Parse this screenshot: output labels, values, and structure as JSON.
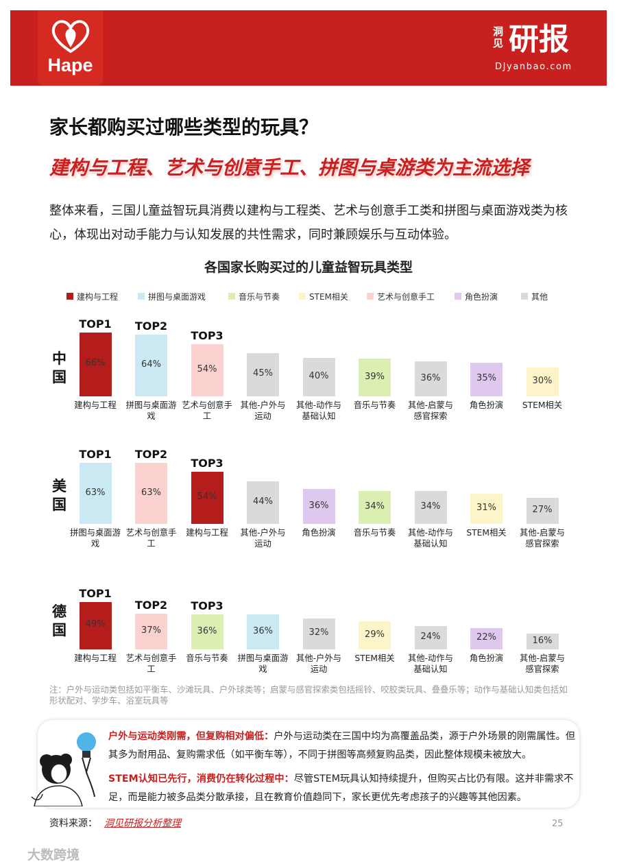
{
  "header": {
    "logo": "Hape",
    "brand_small": "洞见",
    "brand_large": "研报",
    "site": "DJyanbao.com"
  },
  "title": "家长都购买过哪些类型的玩具？",
  "subtitle": "建构与工程、艺术与创意手工、拼图与桌游类为主流选择",
  "intro": "整体来看，三国儿童益智玩具消费以建构与工程类、艺术与创意手工类和拼图与桌面游戏类为核心，体现出对动手能力与认知发展的共性需求，同时兼顾娱乐与互动体验。",
  "chart_title": "各国家长购买过的儿童益智玩具类型",
  "legend": [
    {
      "name": "建构与工程",
      "color": "#b51d1d"
    },
    {
      "name": "拼图与桌面游戏",
      "color": "#cbe9f3"
    },
    {
      "name": "音乐与节奏",
      "color": "#dcefb3"
    },
    {
      "name": "STEM相关",
      "color": "#fdf5c9"
    },
    {
      "name": "艺术与创意手工",
      "color": "#fbd2d0"
    },
    {
      "name": "角色扮演",
      "color": "#dec8ee"
    },
    {
      "name": "其他",
      "color": "#dadada"
    }
  ],
  "chart_data": [
    {
      "type": "bar",
      "title": "中国",
      "categories": [
        "建构与工程",
        "拼图与桌面游戏",
        "艺术与创意手工",
        "其他-户外与运动",
        "其他-动作与基础认知",
        "音乐与节奏",
        "其他-启蒙与感官探索",
        "角色扮演",
        "STEM相关"
      ],
      "values": [
        66,
        64,
        54,
        45,
        40,
        39,
        36,
        35,
        30
      ],
      "value_labels": [
        "66%",
        "64%",
        "54%",
        "45%",
        "40%",
        "39%",
        "36%",
        "35%",
        "30%"
      ],
      "colors": [
        "#b51d1d",
        "#cbe9f3",
        "#fbd2d0",
        "#dadada",
        "#dadada",
        "#dcefb3",
        "#dadada",
        "#dec8ee",
        "#fdf5c9"
      ],
      "annotations": [
        "TOP1",
        "TOP2",
        "TOP3"
      ]
    },
    {
      "type": "bar",
      "title": "美国",
      "categories": [
        "拼图与桌面游戏",
        "艺术与创意手工",
        "建构与工程",
        "其他-户外与运动",
        "角色扮演",
        "音乐与节奏",
        "其他-动作与基础认知",
        "STEM相关",
        "其他-启蒙与感官探索"
      ],
      "values": [
        63,
        63,
        54,
        44,
        36,
        34,
        34,
        31,
        27
      ],
      "value_labels": [
        "63%",
        "63%",
        "54%",
        "44%",
        "36%",
        "34%",
        "34%",
        "31%",
        "27%"
      ],
      "colors": [
        "#cbe9f3",
        "#fbd2d0",
        "#b51d1d",
        "#dadada",
        "#dec8ee",
        "#dcefb3",
        "#dadada",
        "#fdf5c9",
        "#dadada"
      ],
      "annotations": [
        "TOP1",
        "TOP2",
        "TOP3"
      ]
    },
    {
      "type": "bar",
      "title": "德国",
      "categories": [
        "建构与工程",
        "艺术与创意手工",
        "音乐与节奏",
        "拼图与桌面游戏",
        "其他-户外与运动",
        "STEM相关",
        "其他-动作与基础认知",
        "角色扮演",
        "其他-启蒙与感官探索"
      ],
      "values": [
        49,
        37,
        36,
        36,
        32,
        29,
        24,
        22,
        16
      ],
      "value_labels": [
        "49%",
        "37%",
        "36%",
        "36%",
        "32%",
        "29%",
        "24%",
        "22%",
        "16%"
      ],
      "colors": [
        "#b51d1d",
        "#fbd2d0",
        "#dcefb3",
        "#cbe9f3",
        "#dadada",
        "#fdf5c9",
        "#dadada",
        "#dec8ee",
        "#dadada"
      ],
      "annotations": [
        "TOP1",
        "TOP2",
        "TOP3"
      ]
    }
  ],
  "note": "注：户外与运动类包括如平衡车、沙滩玩具、户外球类等；启蒙与感官探索类包括摇铃、咬胶类玩具、叠叠乐等；动作与基础认知类包括如形状配对、学步车、浴室玩具等",
  "insights": [
    {
      "lead": "户外与运动类刚需，但复购相对偏低：",
      "text": "户外与运动类在三国中均为高覆盖品类，源于户外场景的刚需属性。但其多为耐用品、复购需求低（如平衡车等），不同于拼图等高频复购品类，因此整体规模未被放大。"
    },
    {
      "lead": "STEM认知已先行，消费仍在转化过程中：",
      "text": "尽管STEM玩具认知持续提升，但购买占比仍有限。这并非需求不足，而是能力被多品类分散承接，且在教育价值趋同下，家长更优先考虑孩子的兴趣等其他因素。"
    }
  ],
  "source_label": "资料来源：",
  "source": "洞见研报分析整理",
  "page_number": 25,
  "watermark": "大数跨境"
}
